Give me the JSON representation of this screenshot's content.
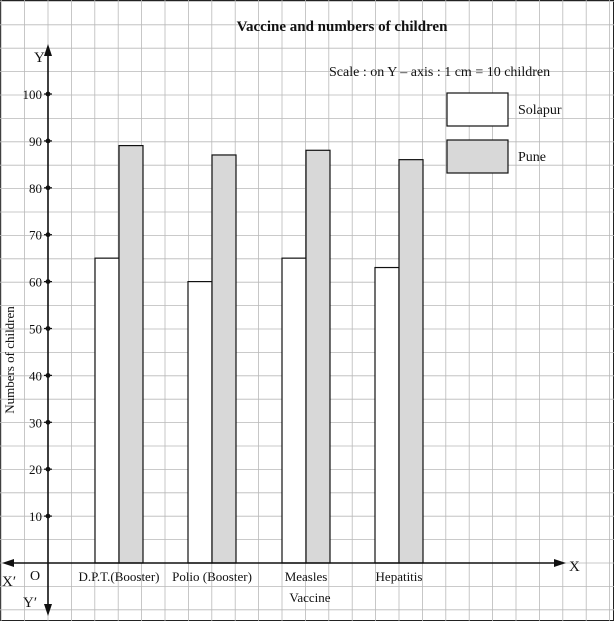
{
  "chart_data": {
    "type": "bar",
    "title": "Vaccine and numbers of children",
    "scale_note": "Scale : on Y – axis : 1 cm = 10 children",
    "xlabel": "Vaccine",
    "ylabel": "Numbers of children",
    "categories": [
      "D.P.T.(Booster)",
      "Polio (Booster)",
      "Measles",
      "Hepatitis"
    ],
    "series": [
      {
        "name": "Solapur",
        "color": "#ffffff",
        "values": [
          65,
          60,
          65,
          63
        ]
      },
      {
        "name": "Pune",
        "color": "#d8d8d8",
        "values": [
          89,
          87,
          88,
          86
        ]
      }
    ],
    "ylim": [
      0,
      110
    ],
    "yticks": [
      10,
      20,
      30,
      40,
      50,
      60,
      70,
      80,
      90,
      100
    ],
    "grid": true,
    "legend_position": "top-right",
    "axis_labels": {
      "y_pos": "Y",
      "y_neg": "Y′",
      "x_pos": "X",
      "x_neg": "X′",
      "origin": "O"
    }
  }
}
